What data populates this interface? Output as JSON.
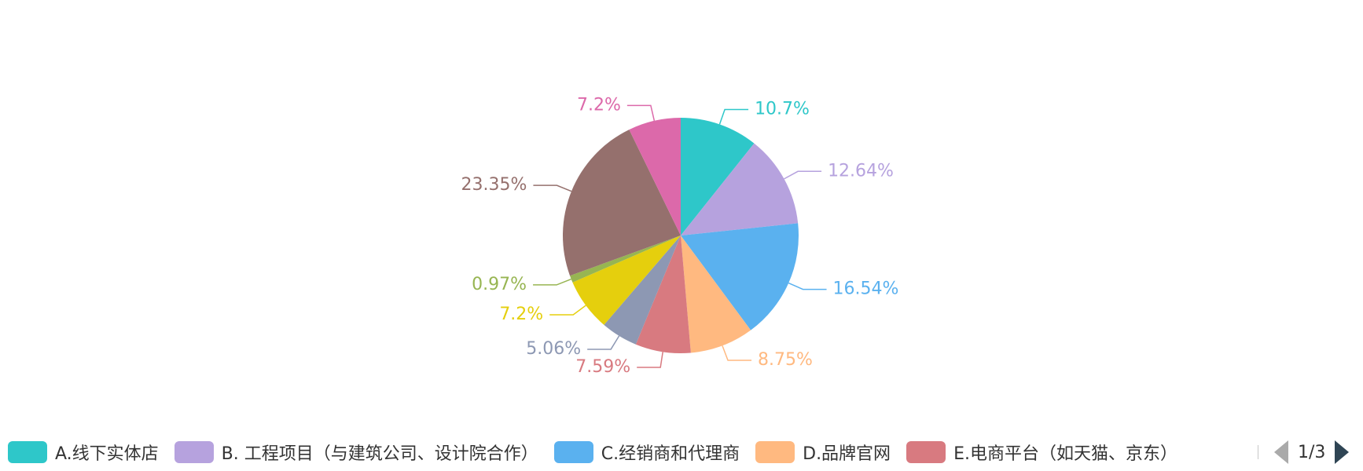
{
  "chart_data": {
    "type": "pie",
    "start_angle_deg": 0,
    "direction": "clockwise",
    "legend_position": "bottom",
    "slices": [
      {
        "name": "A.线下实体店",
        "value": 10.7,
        "label": "10.7%",
        "color": "#2ec7c9"
      },
      {
        "name": "B. 工程项目（与建筑公司、设计院合作）",
        "value": 12.64,
        "label": "12.64%",
        "color": "#b6a2de"
      },
      {
        "name": "C.经销商和代理商",
        "value": 16.54,
        "label": "16.54%",
        "color": "#5ab1ef"
      },
      {
        "name": "D.品牌官网",
        "value": 8.75,
        "label": "8.75%",
        "color": "#ffb980"
      },
      {
        "name": "E.电商平台（如天猫、京东）",
        "value": 7.59,
        "label": "7.59%",
        "color": "#d87a80"
      },
      {
        "name": "",
        "value": 5.06,
        "label": "5.06%",
        "color": "#8d98b3"
      },
      {
        "name": "",
        "value": 7.2,
        "label": "7.2%",
        "color": "#e5cf0d"
      },
      {
        "name": "",
        "value": 0.97,
        "label": "0.97%",
        "color": "#97b552"
      },
      {
        "name": "",
        "value": 23.35,
        "label": "23.35%",
        "color": "#95706d"
      },
      {
        "name": "",
        "value": 7.2,
        "label": "7.2%",
        "color": "#dc69aa"
      }
    ]
  },
  "legend": {
    "items": [
      {
        "label": "A.线下实体店",
        "color": "#2ec7c9"
      },
      {
        "label": "B. 工程项目（与建筑公司、设计院合作）",
        "color": "#b6a2de"
      },
      {
        "label": "C.经销商和代理商",
        "color": "#5ab1ef"
      },
      {
        "label": "D.品牌官网",
        "color": "#ffb980"
      },
      {
        "label": "E.电商平台（如天猫、京东）",
        "color": "#d87a80"
      }
    ],
    "pager": {
      "page_text": "1/3",
      "prev_icon": "triangle-left-icon",
      "next_icon": "triangle-right-icon"
    }
  }
}
